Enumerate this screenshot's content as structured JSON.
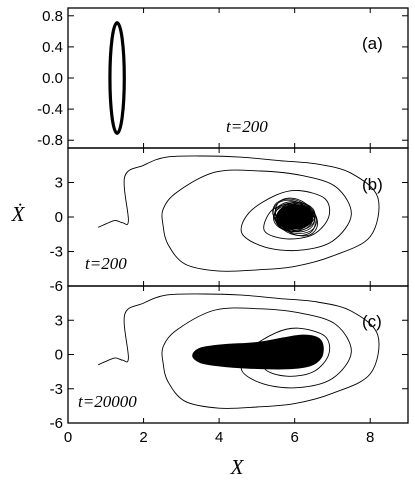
{
  "chart_data": [
    {
      "panel": "(a)",
      "type": "line",
      "time_label": "t=200",
      "xlim": [
        0,
        9
      ],
      "ylim": [
        -0.9,
        0.9
      ],
      "y_ticks": [
        0.8,
        0.4,
        0.0,
        -0.4,
        -0.8
      ],
      "y_tick_labels": [
        "0.8",
        "0.4",
        "0.0",
        "-0.4",
        "-0.8"
      ],
      "orbit": {
        "center_x": 1.3,
        "center_y": 0.0,
        "radius_x": 0.19,
        "radius_y": 0.71
      }
    },
    {
      "panel": "(b)",
      "type": "line",
      "time_label": "t=200",
      "xlim": [
        0,
        9
      ],
      "ylim": [
        -6,
        6
      ],
      "y_ticks": [
        3,
        0,
        -3,
        -6
      ],
      "y_tick_labels": [
        "3",
        "0",
        "-3",
        "-6"
      ],
      "transient": [
        [
          0.8,
          -0.9
        ],
        [
          1.0,
          -0.6
        ],
        [
          1.25,
          -0.3
        ],
        [
          1.45,
          -0.5
        ],
        [
          1.6,
          -0.3
        ],
        [
          1.5,
          3.5
        ],
        [
          2.0,
          4.5
        ],
        [
          2.6,
          5.2
        ],
        [
          3.6,
          5.3
        ],
        [
          4.6,
          5.2
        ],
        [
          5.6,
          4.9
        ],
        [
          6.6,
          4.6
        ],
        [
          7.5,
          3.8
        ],
        [
          8.2,
          1.7
        ],
        [
          8.0,
          -1.7
        ],
        [
          7.0,
          -3.4
        ],
        [
          6.0,
          -4.3
        ],
        [
          5.0,
          -4.6
        ],
        [
          4.0,
          -4.7
        ],
        [
          3.1,
          -4.1
        ],
        [
          2.65,
          -2.4
        ],
        [
          2.52,
          -0.8
        ],
        [
          2.52,
          0.7
        ],
        [
          2.9,
          2.2
        ],
        [
          3.9,
          3.9
        ],
        [
          5.1,
          4.0
        ],
        [
          6.2,
          3.6
        ],
        [
          7.1,
          2.6
        ],
        [
          7.5,
          0.2
        ],
        [
          7.0,
          -2.1
        ],
        [
          6.1,
          -2.9
        ],
        [
          5.2,
          -2.6
        ],
        [
          4.6,
          -1.4
        ],
        [
          4.8,
          0.4
        ],
        [
          5.5,
          1.9
        ],
        [
          6.1,
          2.3
        ],
        [
          6.8,
          1.6
        ],
        [
          6.9,
          0.0
        ],
        [
          6.5,
          -1.5
        ],
        [
          5.8,
          -1.9
        ],
        [
          5.2,
          -1.2
        ],
        [
          5.4,
          0.6
        ],
        [
          6.0,
          1.3
        ]
      ],
      "attractor": {
        "center_x": 6.0,
        "center_y": 0.0,
        "half_width_x": 0.6,
        "half_width_y": 1.4
      }
    },
    {
      "panel": "(c)",
      "type": "line",
      "time_label": "t=20000",
      "xlim": [
        0,
        9
      ],
      "ylim": [
        -6,
        6
      ],
      "x_ticks": [
        0,
        2,
        4,
        6,
        8
      ],
      "x_tick_labels": [
        "0",
        "2",
        "4",
        "6",
        "8"
      ],
      "y_ticks": [
        3,
        0,
        -3,
        -6
      ],
      "y_tick_labels": [
        "3",
        "0",
        "-3",
        "-6"
      ],
      "transient": [
        [
          0.8,
          -0.9
        ],
        [
          1.0,
          -0.6
        ],
        [
          1.25,
          -0.3
        ],
        [
          1.45,
          -0.5
        ],
        [
          1.6,
          -0.3
        ],
        [
          1.5,
          3.5
        ],
        [
          2.0,
          4.5
        ],
        [
          2.6,
          5.2
        ],
        [
          3.6,
          5.3
        ],
        [
          4.6,
          5.2
        ],
        [
          5.6,
          4.9
        ],
        [
          6.6,
          4.6
        ],
        [
          7.5,
          3.8
        ],
        [
          8.2,
          1.7
        ],
        [
          8.0,
          -1.7
        ],
        [
          7.0,
          -3.4
        ],
        [
          6.0,
          -4.3
        ],
        [
          5.0,
          -4.6
        ],
        [
          4.0,
          -4.7
        ],
        [
          3.1,
          -4.1
        ],
        [
          2.65,
          -2.4
        ],
        [
          2.52,
          -0.8
        ],
        [
          2.52,
          0.7
        ],
        [
          2.9,
          2.2
        ],
        [
          3.9,
          3.9
        ],
        [
          5.1,
          4.0
        ],
        [
          6.2,
          3.6
        ],
        [
          7.1,
          2.6
        ],
        [
          7.5,
          0.2
        ],
        [
          7.0,
          -2.1
        ],
        [
          6.1,
          -2.9
        ],
        [
          5.2,
          -2.6
        ],
        [
          4.6,
          -1.4
        ],
        [
          4.8,
          0.4
        ],
        [
          5.5,
          1.9
        ],
        [
          6.1,
          2.3
        ],
        [
          6.8,
          1.6
        ],
        [
          6.9,
          0.0
        ],
        [
          6.5,
          -1.5
        ],
        [
          5.8,
          -1.9
        ],
        [
          5.2,
          -1.2
        ],
        [
          5.4,
          0.6
        ],
        [
          6.0,
          1.3
        ]
      ],
      "attractor_outline": [
        [
          3.3,
          -0.1
        ],
        [
          3.5,
          0.55
        ],
        [
          4.1,
          0.85
        ],
        [
          5.0,
          1.05
        ],
        [
          5.7,
          1.45
        ],
        [
          6.2,
          1.7
        ],
        [
          6.6,
          1.5
        ],
        [
          6.75,
          0.8
        ],
        [
          6.7,
          -0.3
        ],
        [
          6.4,
          -1.0
        ],
        [
          5.8,
          -1.25
        ],
        [
          4.8,
          -1.2
        ],
        [
          4.0,
          -1.0
        ],
        [
          3.5,
          -0.7
        ]
      ]
    }
  ],
  "xlabel": "X",
  "ylabel": "Ẋ"
}
